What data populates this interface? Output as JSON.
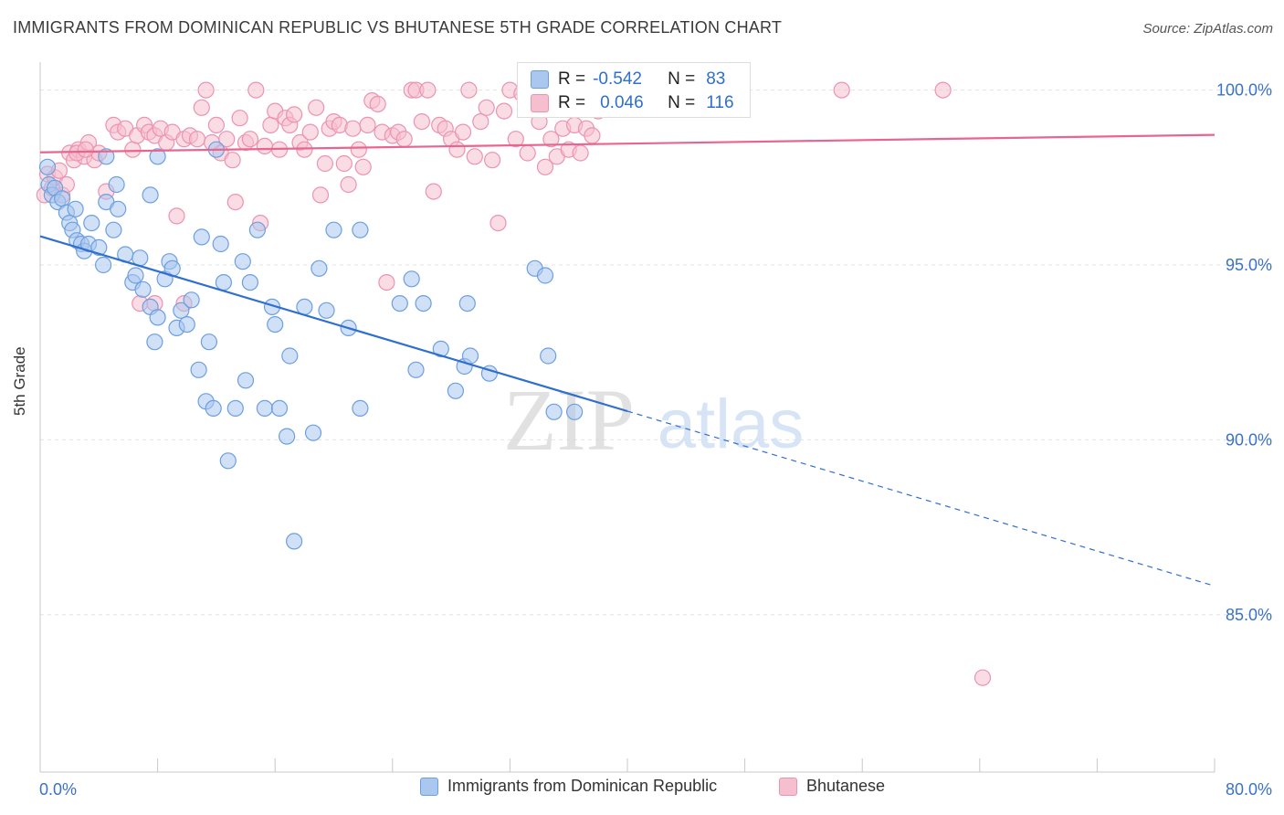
{
  "header": {
    "title": "IMMIGRANTS FROM DOMINICAN REPUBLIC VS BHUTANESE 5TH GRADE CORRELATION CHART",
    "source": "Source: ZipAtlas.com"
  },
  "watermark": {
    "zip": "ZIP",
    "atlas": "atlas"
  },
  "stats": [
    {
      "r_label": "R =",
      "r_value": "-0.542",
      "n_label": "N =",
      "n_value": "83"
    },
    {
      "r_label": "R =",
      "r_value": "0.046",
      "n_label": "N =",
      "n_value": "116"
    }
  ],
  "colors": {
    "blue_fill": "#a9c7ef",
    "blue_stroke": "#6d9fe0",
    "blue_line": "#2f6fd0",
    "pink_fill": "#f6bfd0",
    "pink_stroke": "#ec93b0",
    "pink_line": "#e8658f",
    "tick_label": "#3a72c8",
    "grid": "#e3e3e3"
  },
  "chart_data": {
    "type": "scatter",
    "title": "IMMIGRANTS FROM DOMINICAN REPUBLIC VS BHUTANESE 5TH GRADE CORRELATION CHART",
    "xlabel": "",
    "ylabel": "5th Grade",
    "xlim": [
      0,
      80
    ],
    "ylim": [
      80.5,
      100.8
    ],
    "x_tick_labels": [
      {
        "value": 0,
        "label": "0.0%"
      },
      {
        "value": 80,
        "label": "80.0%"
      }
    ],
    "y_tick_labels": [
      {
        "value": 100,
        "label": "100.0%"
      },
      {
        "value": 95,
        "label": "95.0%"
      },
      {
        "value": 90,
        "label": "90.0%"
      },
      {
        "value": 85,
        "label": "85.0%"
      }
    ],
    "grid": true,
    "legend_position": "bottom",
    "series": [
      {
        "name": "Immigrants from Dominican Republic",
        "color": "#6d9fe0",
        "trend": {
          "x0": 0,
          "y0": 95.82,
          "x1": 40,
          "y1": 90.82,
          "dashed_to_x": 80,
          "dashed_to_y": 85.82
        },
        "points": [
          [
            0.5,
            97.8
          ],
          [
            0.6,
            97.3
          ],
          [
            0.8,
            97.0
          ],
          [
            1.0,
            97.2
          ],
          [
            1.2,
            96.8
          ],
          [
            1.5,
            96.9
          ],
          [
            1.8,
            96.5
          ],
          [
            2.0,
            96.2
          ],
          [
            2.2,
            96.0
          ],
          [
            2.5,
            95.7
          ],
          [
            2.8,
            95.6
          ],
          [
            3.0,
            95.4
          ],
          [
            3.3,
            95.6
          ],
          [
            3.5,
            96.2
          ],
          [
            4.0,
            95.5
          ],
          [
            4.3,
            95.0
          ],
          [
            4.5,
            96.8
          ],
          [
            5.0,
            96.0
          ],
          [
            5.3,
            96.6
          ],
          [
            5.8,
            95.3
          ],
          [
            6.3,
            94.5
          ],
          [
            6.5,
            94.7
          ],
          [
            7.0,
            94.3
          ],
          [
            7.5,
            93.8
          ],
          [
            7.8,
            92.8
          ],
          [
            8.0,
            93.5
          ],
          [
            8.5,
            94.6
          ],
          [
            8.8,
            95.1
          ],
          [
            9.0,
            94.9
          ],
          [
            9.3,
            93.2
          ],
          [
            9.6,
            93.7
          ],
          [
            10.0,
            93.3
          ],
          [
            10.3,
            94.0
          ],
          [
            10.8,
            92.0
          ],
          [
            11.3,
            91.1
          ],
          [
            11.5,
            92.8
          ],
          [
            11.8,
            90.9
          ],
          [
            12.3,
            95.6
          ],
          [
            12.5,
            94.5
          ],
          [
            12.8,
            89.4
          ],
          [
            13.3,
            90.9
          ],
          [
            13.8,
            95.1
          ],
          [
            14.0,
            91.7
          ],
          [
            14.3,
            94.5
          ],
          [
            14.8,
            96.0
          ],
          [
            15.3,
            90.9
          ],
          [
            15.8,
            93.8
          ],
          [
            16.0,
            93.3
          ],
          [
            16.3,
            90.9
          ],
          [
            16.8,
            90.1
          ],
          [
            17.0,
            92.4
          ],
          [
            17.3,
            87.1
          ],
          [
            18.0,
            93.8
          ],
          [
            18.6,
            90.2
          ],
          [
            19.0,
            94.9
          ],
          [
            19.5,
            93.7
          ],
          [
            20.0,
            96.0
          ],
          [
            21.0,
            93.2
          ],
          [
            21.8,
            96.0
          ],
          [
            21.8,
            90.9
          ],
          [
            24.5,
            93.9
          ],
          [
            25.3,
            94.6
          ],
          [
            25.6,
            92.0
          ],
          [
            26.1,
            93.9
          ],
          [
            27.3,
            92.6
          ],
          [
            28.3,
            91.4
          ],
          [
            28.9,
            92.1
          ],
          [
            29.1,
            93.9
          ],
          [
            29.3,
            92.4
          ],
          [
            30.6,
            91.9
          ],
          [
            33.7,
            94.9
          ],
          [
            34.4,
            94.7
          ],
          [
            34.6,
            92.4
          ],
          [
            35.0,
            90.8
          ],
          [
            36.4,
            90.8
          ],
          [
            4.5,
            98.1
          ],
          [
            5.2,
            97.3
          ],
          [
            8.0,
            98.1
          ],
          [
            7.5,
            97.0
          ],
          [
            12.0,
            98.3
          ],
          [
            2.4,
            96.6
          ],
          [
            11.0,
            95.8
          ],
          [
            6.8,
            95.2
          ]
        ]
      },
      {
        "name": "Bhutanese",
        "color": "#ec93b0",
        "trend": {
          "x0": 0,
          "y0": 98.22,
          "x1": 80,
          "y1": 98.72
        },
        "points": [
          [
            0.3,
            97.0
          ],
          [
            0.5,
            97.6
          ],
          [
            0.8,
            97.2
          ],
          [
            1.0,
            97.5
          ],
          [
            1.3,
            97.7
          ],
          [
            1.5,
            97.0
          ],
          [
            1.8,
            97.3
          ],
          [
            2.0,
            98.2
          ],
          [
            2.3,
            98.0
          ],
          [
            2.6,
            98.3
          ],
          [
            3.0,
            98.1
          ],
          [
            3.3,
            98.5
          ],
          [
            3.7,
            98.0
          ],
          [
            4.0,
            98.2
          ],
          [
            4.5,
            97.1
          ],
          [
            5.0,
            99.0
          ],
          [
            5.3,
            98.8
          ],
          [
            5.8,
            98.9
          ],
          [
            6.3,
            98.3
          ],
          [
            6.6,
            98.7
          ],
          [
            7.1,
            99.0
          ],
          [
            7.4,
            98.8
          ],
          [
            7.8,
            98.7
          ],
          [
            8.2,
            98.9
          ],
          [
            8.6,
            98.5
          ],
          [
            9.0,
            98.8
          ],
          [
            9.3,
            96.4
          ],
          [
            9.8,
            98.6
          ],
          [
            10.2,
            98.7
          ],
          [
            10.7,
            98.6
          ],
          [
            11.0,
            99.5
          ],
          [
            11.3,
            100.0
          ],
          [
            11.7,
            98.5
          ],
          [
            12.0,
            99.0
          ],
          [
            12.3,
            98.2
          ],
          [
            12.7,
            98.6
          ],
          [
            13.1,
            98.0
          ],
          [
            13.3,
            96.8
          ],
          [
            13.6,
            99.2
          ],
          [
            14.0,
            98.5
          ],
          [
            14.3,
            98.6
          ],
          [
            14.7,
            100.0
          ],
          [
            15.0,
            96.2
          ],
          [
            15.3,
            98.4
          ],
          [
            15.7,
            99.0
          ],
          [
            16.0,
            99.4
          ],
          [
            16.3,
            98.3
          ],
          [
            16.7,
            99.2
          ],
          [
            17.0,
            99.0
          ],
          [
            17.3,
            99.3
          ],
          [
            17.7,
            98.5
          ],
          [
            18.0,
            98.3
          ],
          [
            18.4,
            98.8
          ],
          [
            18.8,
            99.5
          ],
          [
            19.1,
            97.0
          ],
          [
            19.4,
            97.9
          ],
          [
            19.7,
            98.9
          ],
          [
            20.0,
            99.1
          ],
          [
            20.4,
            99.0
          ],
          [
            20.7,
            97.9
          ],
          [
            21.0,
            97.3
          ],
          [
            21.3,
            98.9
          ],
          [
            21.7,
            98.3
          ],
          [
            22.0,
            97.8
          ],
          [
            22.3,
            99.0
          ],
          [
            22.6,
            99.7
          ],
          [
            23.0,
            99.6
          ],
          [
            23.3,
            98.8
          ],
          [
            23.6,
            94.5
          ],
          [
            24.0,
            98.7
          ],
          [
            24.4,
            98.8
          ],
          [
            24.8,
            98.6
          ],
          [
            25.3,
            100.0
          ],
          [
            25.6,
            100.0
          ],
          [
            26.0,
            99.1
          ],
          [
            26.4,
            100.0
          ],
          [
            26.8,
            97.1
          ],
          [
            27.2,
            99.0
          ],
          [
            27.6,
            98.9
          ],
          [
            28.0,
            98.6
          ],
          [
            28.4,
            98.3
          ],
          [
            28.8,
            98.8
          ],
          [
            29.2,
            100.0
          ],
          [
            29.6,
            98.1
          ],
          [
            30.0,
            99.1
          ],
          [
            30.4,
            99.5
          ],
          [
            30.8,
            98.0
          ],
          [
            31.2,
            96.2
          ],
          [
            31.6,
            99.4
          ],
          [
            32.0,
            100.0
          ],
          [
            32.4,
            98.6
          ],
          [
            32.8,
            99.9
          ],
          [
            33.2,
            98.2
          ],
          [
            33.6,
            99.6
          ],
          [
            34.0,
            99.1
          ],
          [
            34.4,
            97.8
          ],
          [
            34.8,
            98.6
          ],
          [
            35.2,
            98.1
          ],
          [
            35.6,
            98.9
          ],
          [
            36.0,
            98.3
          ],
          [
            36.4,
            99.0
          ],
          [
            36.8,
            98.2
          ],
          [
            37.2,
            98.9
          ],
          [
            37.6,
            98.7
          ],
          [
            38.0,
            99.4
          ],
          [
            41.2,
            100.0
          ],
          [
            42.2,
            99.8
          ],
          [
            44.0,
            99.8
          ],
          [
            54.6,
            100.0
          ],
          [
            61.5,
            100.0
          ],
          [
            64.2,
            83.2
          ],
          [
            2.5,
            98.2
          ],
          [
            6.8,
            93.9
          ],
          [
            9.8,
            93.9
          ],
          [
            7.8,
            93.9
          ],
          [
            3.1,
            98.3
          ]
        ]
      }
    ]
  },
  "legend": [
    {
      "label": "Immigrants from Dominican Republic"
    },
    {
      "label": "Bhutanese"
    }
  ]
}
